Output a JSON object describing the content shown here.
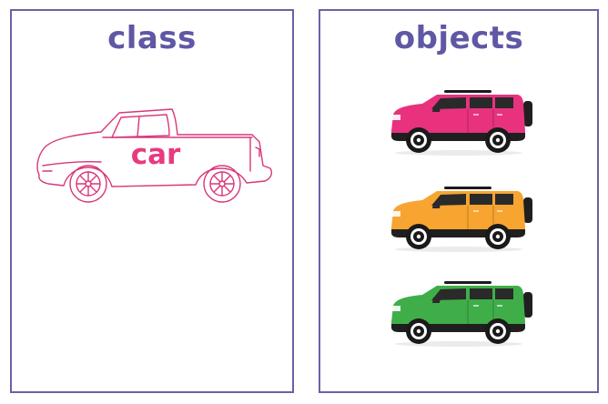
{
  "class_panel": {
    "title": "class",
    "class_label": "car",
    "outline_icon": "pickup-truck-outline-icon"
  },
  "objects_panel": {
    "title": "objects",
    "objects": [
      {
        "icon": "suv-icon",
        "color": "#e8327e"
      },
      {
        "icon": "suv-icon",
        "color": "#f7a431"
      },
      {
        "icon": "suv-icon",
        "color": "#3fae49"
      }
    ]
  },
  "colors": {
    "frame": "#6a62a6",
    "title": "#5f58a4",
    "class_accent": "#d8377a",
    "label": "#e83a7f"
  }
}
